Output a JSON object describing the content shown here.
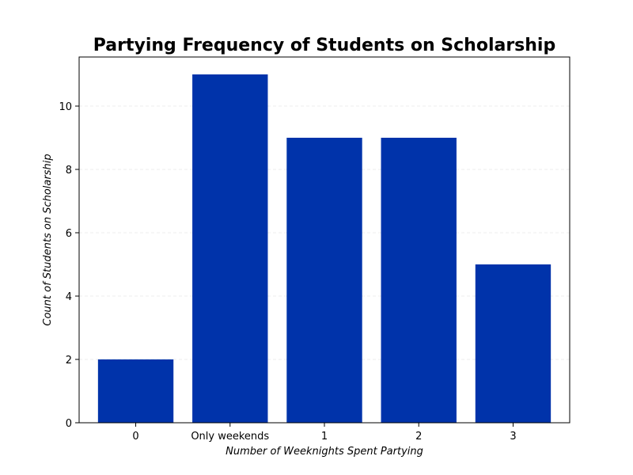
{
  "chart_data": {
    "type": "bar",
    "title": "Partying Frequency of Students on Scholarship",
    "xlabel": "Number of Weeknights Spent Partying",
    "ylabel": "Count of Students on Scholarship",
    "categories": [
      "0",
      "Only weekends",
      "1",
      "2",
      "3"
    ],
    "values": [
      2,
      11,
      9,
      9,
      5
    ],
    "ylim": [
      0,
      11.55
    ],
    "yticks": [
      0,
      2,
      4,
      6,
      8,
      10
    ],
    "grid": true,
    "bar_color": "#0033AA"
  }
}
